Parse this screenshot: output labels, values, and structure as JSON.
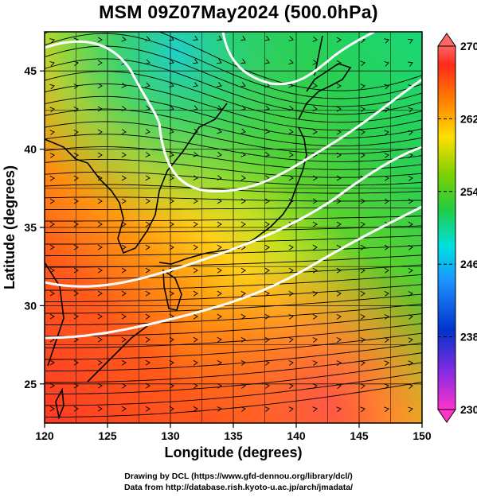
{
  "title": "MSM 09Z07May2024 (500.0hPa)",
  "map": {
    "projection": "lat-lon",
    "lon_range": [
      120,
      150
    ],
    "lat_range": [
      22.5,
      47.5
    ],
    "field_variable": "temperature",
    "field_units": "K",
    "overlay": "wind streamlines",
    "contour_color": "#ffffff"
  },
  "axes": {
    "xlabel": "Longitude (degrees)",
    "ylabel": "Latitude  (degrees)",
    "xticks": [
      "120",
      "125",
      "130",
      "135",
      "140",
      "145",
      "150"
    ],
    "yticks": [
      "25",
      "30",
      "35",
      "40",
      "45"
    ]
  },
  "colorbar": {
    "min": 230,
    "max": 270,
    "ticks": [
      "270",
      "262",
      "254",
      "246",
      "238",
      "230"
    ],
    "extend": "both",
    "colors": [
      "#ff33cc",
      "#8a2be2",
      "#0033cc",
      "#1e90ff",
      "#00e0e0",
      "#22cc44",
      "#7fd000",
      "#ffe000",
      "#ff8000",
      "#ff2a1a",
      "#ff6666"
    ]
  },
  "footer": {
    "line1": "Drawing by DCL (https://www.gfd-dennou.org/library/dcl/)",
    "line2": "Data from http://database.rish.kyoto-u.ac.jp/arch/jmadata/"
  }
}
